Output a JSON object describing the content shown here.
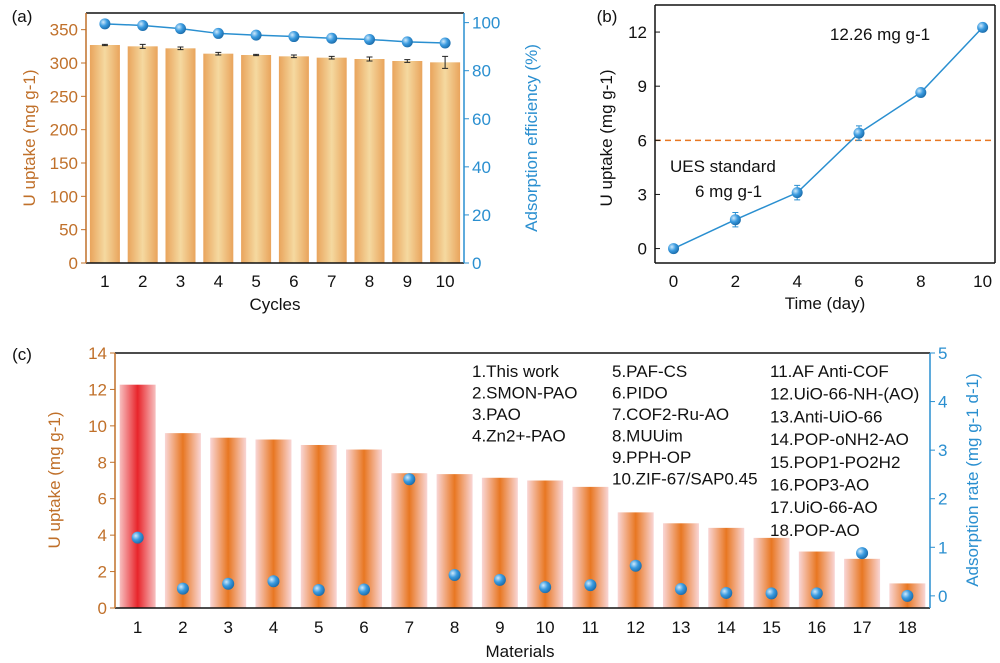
{
  "chart_data": [
    {
      "panel": "(a)",
      "type": "bar",
      "xlabel": "Cycles",
      "ylabel": "U uptake (mg g-1)",
      "y2label": "Adsorption efficiency (%)",
      "categories": [
        "1",
        "2",
        "3",
        "4",
        "5",
        "6",
        "7",
        "8",
        "9",
        "10"
      ],
      "series": [
        {
          "name": "U uptake",
          "axis": "left",
          "type": "bar",
          "values": [
            327,
            325,
            322,
            314,
            312,
            310,
            308,
            306,
            303,
            301
          ],
          "errors": [
            1,
            3,
            2,
            2,
            1,
            2,
            2,
            3,
            2,
            9
          ]
        },
        {
          "name": "Adsorption efficiency",
          "axis": "right",
          "type": "line",
          "values": [
            99.5,
            98.8,
            97.5,
            95.5,
            94.8,
            94.2,
            93.5,
            93,
            92,
            91.5
          ]
        }
      ],
      "ylim": [
        0,
        375
      ],
      "yticks": [
        "0",
        "50",
        "100",
        "150",
        "200",
        "250",
        "300",
        "350"
      ],
      "y2lim": [
        0,
        104
      ],
      "y2ticks": [
        "0",
        "20",
        "40",
        "60",
        "80",
        "100"
      ],
      "colors": {
        "bar": "#e9a45c",
        "line": "#2a8fd0"
      }
    },
    {
      "panel": "(b)",
      "type": "line",
      "xlabel": "Time (day)",
      "ylabel": "U uptake (mg g-1)",
      "x": [
        0,
        2,
        4,
        6,
        8,
        10
      ],
      "y": [
        0,
        1.6,
        3.1,
        6.4,
        8.65,
        12.26
      ],
      "errors": [
        0.2,
        0.4,
        0.4,
        0.4,
        0.2,
        0.1
      ],
      "xlim": [
        -0.6,
        10.4
      ],
      "ylim": [
        -0.8,
        13.5
      ],
      "xticks": [
        "0",
        "2",
        "4",
        "6",
        "8",
        "10"
      ],
      "yticks": [
        "0",
        "3",
        "6",
        "9",
        "12"
      ],
      "annotations": [
        "12.26 mg g-1",
        "UES standard",
        "6 mg g-1"
      ],
      "reference_line": 6,
      "colors": {
        "line": "#2a8fd0",
        "ref": "#e87722"
      }
    },
    {
      "panel": "(c)",
      "type": "bar",
      "xlabel": "Materials",
      "ylabel": "U uptake (mg g-1)",
      "y2label": "Adsorption rate (mg g-1 d-1)",
      "categories": [
        "1",
        "2",
        "3",
        "4",
        "5",
        "6",
        "7",
        "8",
        "9",
        "10",
        "11",
        "12",
        "13",
        "14",
        "15",
        "16",
        "17",
        "18"
      ],
      "series": [
        {
          "name": "U uptake",
          "axis": "left",
          "type": "bar",
          "values": [
            12.26,
            9.6,
            9.35,
            9.25,
            8.95,
            8.7,
            7.4,
            7.35,
            7.15,
            7.0,
            6.65,
            5.25,
            4.65,
            4.4,
            3.85,
            3.1,
            2.7,
            1.35
          ]
        },
        {
          "name": "Adsorption rate",
          "axis": "right",
          "type": "scatter",
          "values": [
            1.2,
            0.15,
            0.25,
            0.3,
            0.12,
            0.13,
            2.4,
            0.43,
            0.33,
            0.18,
            0.22,
            0.62,
            0.14,
            0.06,
            0.05,
            0.05,
            0.88,
            0
          ]
        }
      ],
      "ylim": [
        0,
        14
      ],
      "yticks": [
        "0",
        "2",
        "4",
        "6",
        "8",
        "10",
        "12",
        "14"
      ],
      "y2lim": [
        -0.25,
        5
      ],
      "y2ticks": [
        "0",
        "1",
        "2",
        "3",
        "4",
        "5"
      ],
      "legend": [
        "1.This work",
        "2.SMON-PAO",
        "3.PAO",
        "4.Zn2+-PAO",
        "5.PAF-CS",
        "6.PIDO",
        "7.COF2-Ru-AO",
        "8.MUUim",
        "9.PPH-OP",
        "10.ZIF-67/SAP0.45",
        "11.AF Anti-COF",
        "12.UiO-66-NH-(AO)",
        "13.Anti-UiO-66",
        "14.POP-oNH2-AO",
        "15.POP1-PO2H2",
        "16.POP3-AO",
        "17.UiO-66-AO",
        "18.POP-AO"
      ],
      "colors": {
        "bar": "#e87722",
        "highlight": "#e8252b",
        "point": "#2a8fd0"
      }
    }
  ]
}
